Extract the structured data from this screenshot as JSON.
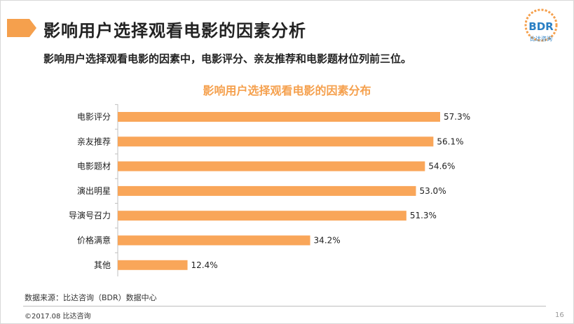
{
  "slide": {
    "title": "影响用户选择观看电影的因素分析",
    "summary": "影响用户选择观看电影的因素中，电影评分、亲友推荐和电影题材位列前三位。",
    "source": "数据来源：比达咨询（BDR）数据中心",
    "copyright": "©2017.08 比达咨询",
    "page_number": "16",
    "accent_color": "#f5a04d"
  },
  "logo": {
    "text": "BDR",
    "subtitle": "比达咨询",
    "colors": {
      "ring": "#f5a04d",
      "text": "#2a7fc4"
    }
  },
  "chart_data": {
    "type": "bar",
    "orientation": "horizontal",
    "title": "影响用户选择观看电影的因素分布",
    "categories": [
      "电影评分",
      "亲友推荐",
      "电影题材",
      "演出明星",
      "导演号召力",
      "价格满意",
      "其他"
    ],
    "values": [
      57.3,
      56.1,
      54.6,
      53.0,
      51.3,
      34.2,
      12.4
    ],
    "value_labels": [
      "57.3%",
      "56.1%",
      "54.6%",
      "53.0%",
      "51.3%",
      "34.2%",
      "12.4%"
    ],
    "unit": "%",
    "xlim": [
      0,
      60
    ],
    "grid": false,
    "legend": "none",
    "bar_color": "#f9a659"
  }
}
